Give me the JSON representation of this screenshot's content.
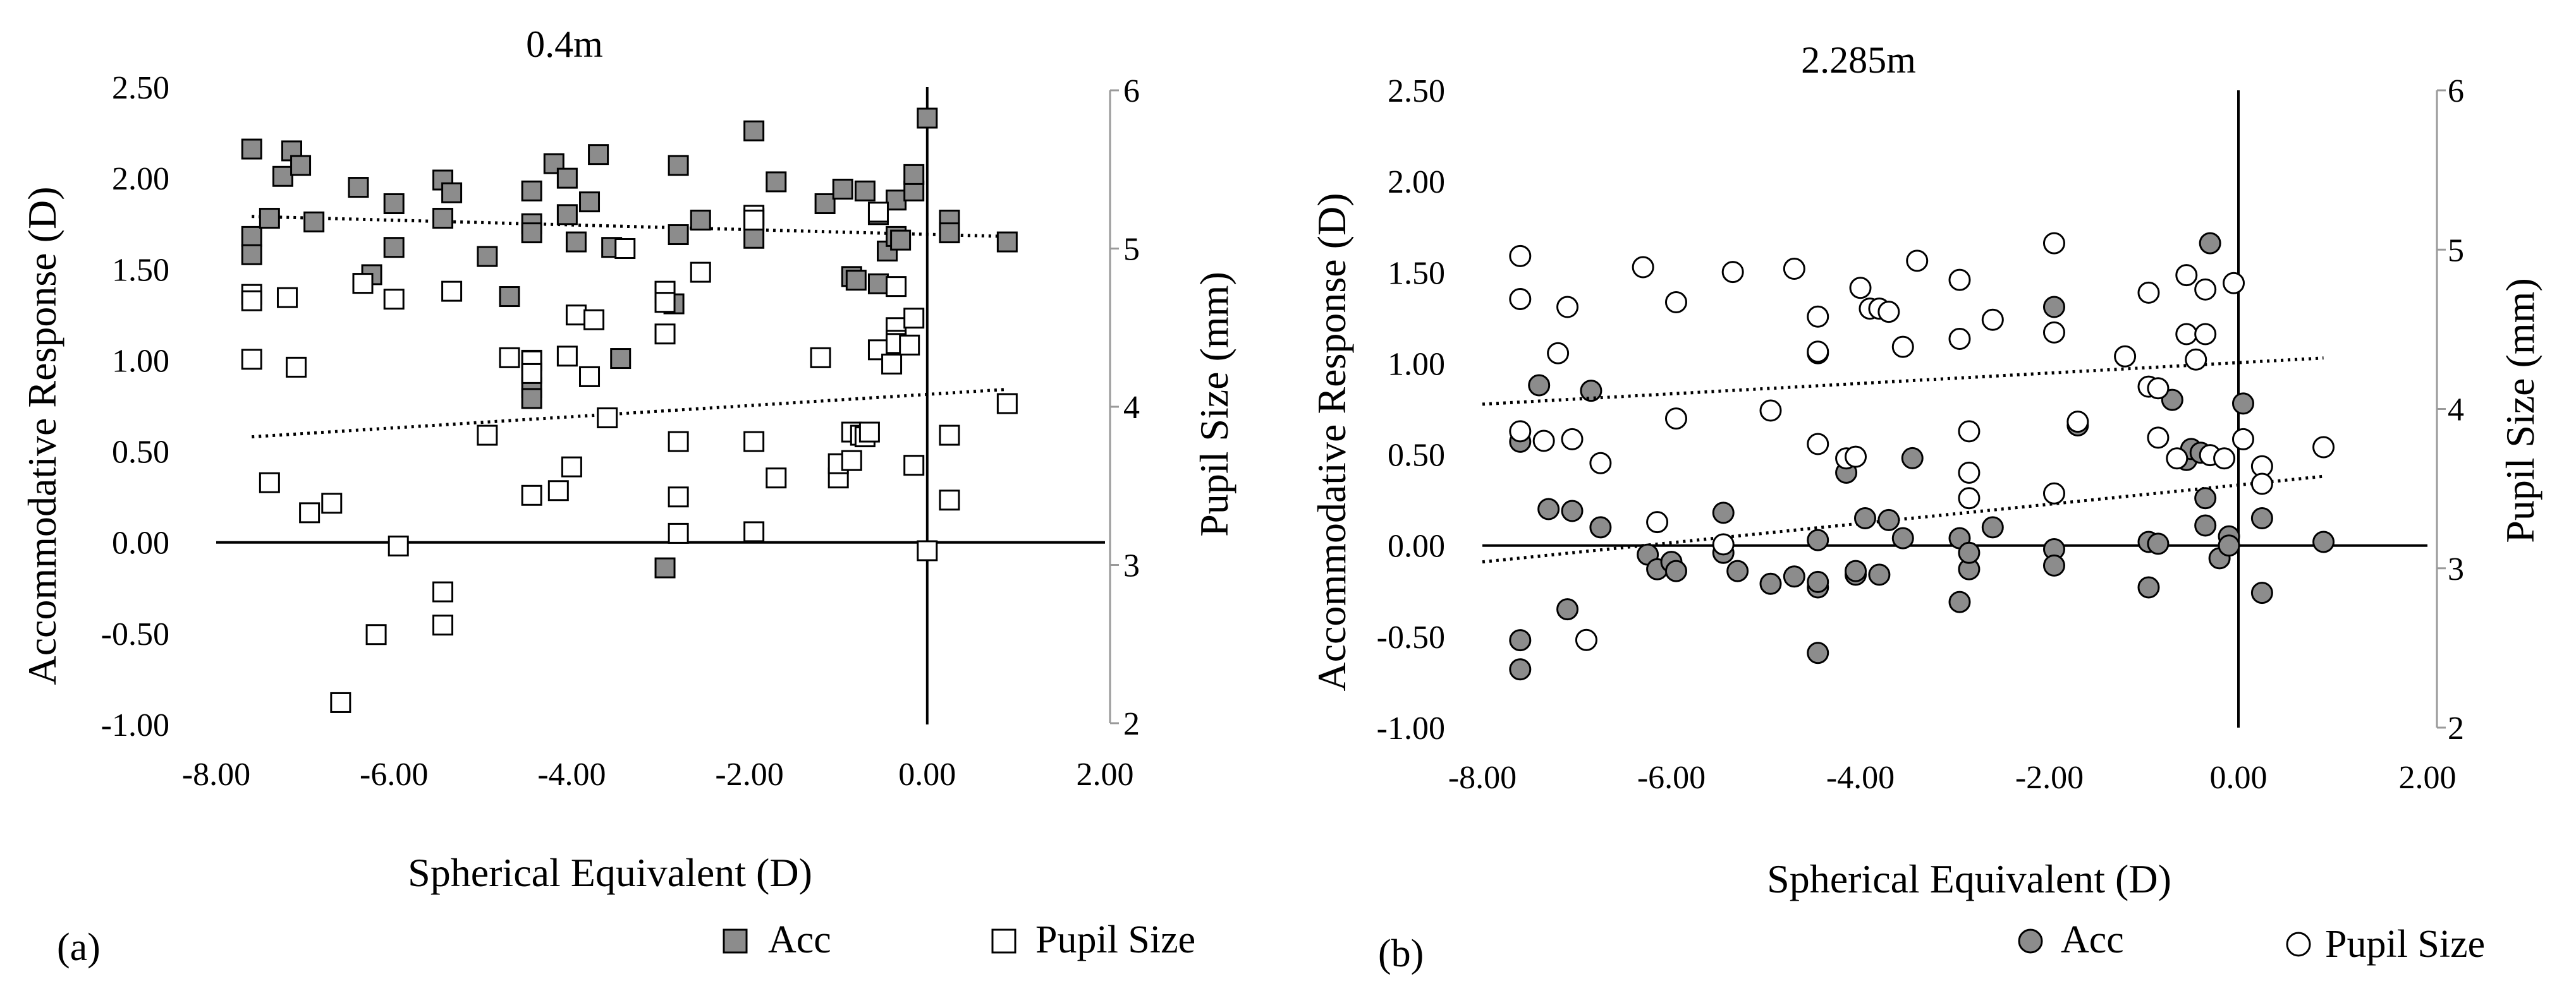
{
  "chart_data": [
    {
      "type": "scatter",
      "panel_label": "(a)",
      "title": "0.4m",
      "xlabel": "Spherical Equivalent (D)",
      "ylabel": "Accommodative Response (D)",
      "y2label": "Pupil Size (mm)",
      "xlim": [
        -8,
        2
      ],
      "ylim": [
        -1,
        2.5
      ],
      "y2lim": [
        2,
        6
      ],
      "xticks": [
        -8,
        -6,
        -4,
        -2,
        0,
        2
      ],
      "xtick_labels": [
        "-8.00",
        "-6.00",
        "-4.00",
        "-2.00",
        "0.00",
        "2.00"
      ],
      "yticks": [
        -1,
        -0.5,
        0,
        0.5,
        1,
        1.5,
        2,
        2.5
      ],
      "ytick_labels": [
        "-1.00",
        "-0.50",
        "0.00",
        "0.50",
        "1.00",
        "1.50",
        "2.00",
        "2.50"
      ],
      "y2ticks": [
        2,
        3,
        4,
        5,
        6
      ],
      "y2tick_labels": [
        "2",
        "3",
        "4",
        "5",
        "6"
      ],
      "marker": "square",
      "legend": [
        "Acc",
        "Pupil Size"
      ],
      "series": [
        {
          "name": "Acc",
          "axis": "left",
          "color": "#8c8c8c",
          "points": [
            [
              -7.6,
              2.16
            ],
            [
              -7.6,
              1.68
            ],
            [
              -7.6,
              1.58
            ],
            [
              -7.4,
              1.78
            ],
            [
              -7.25,
              2.01
            ],
            [
              -7.15,
              2.15
            ],
            [
              -7.05,
              2.07
            ],
            [
              -6.9,
              1.76
            ],
            [
              -6.4,
              1.95
            ],
            [
              -6.25,
              1.47
            ],
            [
              -6.0,
              1.86
            ],
            [
              -6.0,
              1.62
            ],
            [
              -5.45,
              1.99
            ],
            [
              -5.45,
              1.78
            ],
            [
              -5.35,
              1.92
            ],
            [
              -4.95,
              1.57
            ],
            [
              -4.7,
              1.35
            ],
            [
              -4.45,
              1.93
            ],
            [
              -4.45,
              1.75
            ],
            [
              -4.45,
              1.7
            ],
            [
              -4.45,
              1.0
            ],
            [
              -4.45,
              0.93
            ],
            [
              -4.45,
              0.85
            ],
            [
              -4.45,
              0.79
            ],
            [
              -4.2,
              2.08
            ],
            [
              -4.05,
              2.0
            ],
            [
              -4.05,
              1.8
            ],
            [
              -3.95,
              1.65
            ],
            [
              -3.8,
              1.87
            ],
            [
              -3.7,
              2.13
            ],
            [
              -3.55,
              1.62
            ],
            [
              -3.45,
              1.01
            ],
            [
              -2.95,
              -0.14
            ],
            [
              -2.95,
              1.37
            ],
            [
              -2.85,
              1.31
            ],
            [
              -2.8,
              2.07
            ],
            [
              -2.8,
              1.69
            ],
            [
              -2.55,
              1.77
            ],
            [
              -1.95,
              2.26
            ],
            [
              -1.95,
              1.78
            ],
            [
              -1.95,
              1.67
            ],
            [
              -1.7,
              1.98
            ],
            [
              -1.15,
              1.86
            ],
            [
              -0.95,
              1.94
            ],
            [
              -0.85,
              1.46
            ],
            [
              -0.8,
              1.44
            ],
            [
              -0.7,
              1.93
            ],
            [
              -0.55,
              1.8
            ],
            [
              -0.55,
              1.42
            ],
            [
              -0.45,
              1.6
            ],
            [
              -0.35,
              1.88
            ],
            [
              -0.35,
              1.68
            ],
            [
              -0.3,
              1.66
            ],
            [
              -0.15,
              1.93
            ],
            [
              -0.15,
              2.02
            ],
            [
              0.0,
              2.33
            ],
            [
              0.25,
              1.77
            ],
            [
              0.25,
              1.7
            ],
            [
              0.9,
              1.65
            ]
          ],
          "trendline": [
            [
              -7.6,
              1.79
            ],
            [
              0.9,
              1.68
            ]
          ]
        },
        {
          "name": "Pupil Size",
          "axis": "right",
          "color": "#ffffff",
          "points": [
            [
              -7.6,
              4.71
            ],
            [
              -7.6,
              4.67
            ],
            [
              -7.6,
              4.3
            ],
            [
              -7.4,
              3.52
            ],
            [
              -7.2,
              4.69
            ],
            [
              -7.1,
              4.25
            ],
            [
              -6.95,
              3.33
            ],
            [
              -6.7,
              3.39
            ],
            [
              -6.6,
              2.13
            ],
            [
              -6.35,
              4.78
            ],
            [
              -6.2,
              2.56
            ],
            [
              -6.0,
              4.68
            ],
            [
              -5.95,
              3.12
            ],
            [
              -5.45,
              2.83
            ],
            [
              -5.45,
              2.62
            ],
            [
              -5.35,
              4.73
            ],
            [
              -4.95,
              3.82
            ],
            [
              -4.7,
              4.31
            ],
            [
              -4.45,
              3.44
            ],
            [
              -4.45,
              4.29
            ],
            [
              -4.45,
              4.21
            ],
            [
              -4.15,
              3.47
            ],
            [
              -4.05,
              4.32
            ],
            [
              -4.0,
              3.62
            ],
            [
              -3.95,
              4.58
            ],
            [
              -3.8,
              4.19
            ],
            [
              -3.75,
              4.55
            ],
            [
              -3.6,
              3.93
            ],
            [
              -3.4,
              5.0
            ],
            [
              -2.95,
              4.73
            ],
            [
              -2.95,
              4.66
            ],
            [
              -2.95,
              4.46
            ],
            [
              -2.8,
              3.78
            ],
            [
              -2.8,
              3.43
            ],
            [
              -2.8,
              3.2
            ],
            [
              -2.55,
              4.85
            ],
            [
              -1.95,
              3.78
            ],
            [
              -1.95,
              3.21
            ],
            [
              -1.95,
              5.21
            ],
            [
              -1.95,
              5.18
            ],
            [
              -1.7,
              3.55
            ],
            [
              -1.2,
              4.31
            ],
            [
              -1.0,
              3.55
            ],
            [
              -1.0,
              3.64
            ],
            [
              -0.85,
              3.84
            ],
            [
              -0.85,
              3.66
            ],
            [
              -0.75,
              3.82
            ],
            [
              -0.7,
              3.81
            ],
            [
              -0.65,
              3.84
            ],
            [
              -0.55,
              4.36
            ],
            [
              -0.55,
              5.23
            ],
            [
              -0.4,
              4.27
            ],
            [
              -0.35,
              4.5
            ],
            [
              -0.35,
              4.42
            ],
            [
              -0.35,
              4.4
            ],
            [
              -0.35,
              4.76
            ],
            [
              -0.15,
              3.63
            ],
            [
              -0.2,
              4.39
            ],
            [
              -0.15,
              4.56
            ],
            [
              0.0,
              3.09
            ],
            [
              0.25,
              3.41
            ],
            [
              0.25,
              3.82
            ],
            [
              0.9,
              4.02
            ]
          ],
          "trendline": [
            [
              -7.6,
              3.81
            ],
            [
              0.9,
              4.11
            ]
          ]
        }
      ]
    },
    {
      "type": "scatter",
      "panel_label": "(b)",
      "title": "2.285m",
      "xlabel": "Spherical Equivalent (D)",
      "ylabel": "Accommodative Response (D)",
      "y2label": "Pupil Size (mm)",
      "xlim": [
        -8,
        2
      ],
      "ylim": [
        -1,
        2.5
      ],
      "y2lim": [
        2,
        6
      ],
      "xticks": [
        -8,
        -6,
        -4,
        -2,
        0,
        2
      ],
      "xtick_labels": [
        "-8.00",
        "-6.00",
        "-4.00",
        "-2.00",
        "0.00",
        "2.00"
      ],
      "yticks": [
        -1,
        -0.5,
        0,
        0.5,
        1,
        1.5,
        2,
        2.5
      ],
      "ytick_labels": [
        "-1.00",
        "-0.50",
        "0.00",
        "0.50",
        "1.00",
        "1.50",
        "2.00",
        "2.50"
      ],
      "y2ticks": [
        2,
        3,
        4,
        5,
        6
      ],
      "y2tick_labels": [
        "2",
        "3",
        "4",
        "5",
        "6"
      ],
      "marker": "circle",
      "legend": [
        "Acc",
        "Pupil Size"
      ],
      "series": [
        {
          "name": "Acc",
          "axis": "left",
          "color": "#8c8c8c",
          "points": [
            [
              -7.6,
              -0.68
            ],
            [
              -7.6,
              -0.52
            ],
            [
              -7.6,
              0.57
            ],
            [
              -7.4,
              0.88
            ],
            [
              -7.3,
              0.2
            ],
            [
              -7.1,
              -0.35
            ],
            [
              -7.05,
              0.19
            ],
            [
              -6.85,
              0.85
            ],
            [
              -6.75,
              0.1
            ],
            [
              -6.25,
              -0.05
            ],
            [
              -6.15,
              -0.13
            ],
            [
              -6.0,
              -0.09
            ],
            [
              -5.95,
              -0.14
            ],
            [
              -5.45,
              0.18
            ],
            [
              -5.45,
              -0.04
            ],
            [
              -5.3,
              -0.14
            ],
            [
              -4.95,
              -0.21
            ],
            [
              -4.7,
              -0.17
            ],
            [
              -4.45,
              -0.23
            ],
            [
              -4.45,
              -0.2
            ],
            [
              -4.45,
              -0.59
            ],
            [
              -4.45,
              0.03
            ],
            [
              -4.15,
              0.4
            ],
            [
              -4.05,
              -0.16
            ],
            [
              -4.05,
              -0.14
            ],
            [
              -3.95,
              0.15
            ],
            [
              -3.8,
              -0.16
            ],
            [
              -3.7,
              0.14
            ],
            [
              -3.55,
              0.04
            ],
            [
              -3.45,
              0.48
            ],
            [
              -2.95,
              -0.31
            ],
            [
              -2.95,
              0.04
            ],
            [
              -2.85,
              -0.13
            ],
            [
              -2.85,
              -0.04
            ],
            [
              -2.6,
              0.1
            ],
            [
              -1.95,
              1.31
            ],
            [
              -1.95,
              -0.02
            ],
            [
              -1.95,
              -0.11
            ],
            [
              -1.7,
              0.66
            ],
            [
              -0.95,
              -0.23
            ],
            [
              -0.95,
              0.02
            ],
            [
              -0.85,
              0.01
            ],
            [
              -0.7,
              0.8
            ],
            [
              -0.55,
              0.47
            ],
            [
              -0.5,
              0.53
            ],
            [
              -0.4,
              0.51
            ],
            [
              -0.35,
              0.11
            ],
            [
              -0.3,
              1.66
            ],
            [
              -0.35,
              0.26
            ],
            [
              -0.2,
              -0.07
            ],
            [
              -0.1,
              0.05
            ],
            [
              -0.1,
              0.0
            ],
            [
              0.05,
              0.78
            ],
            [
              0.25,
              -0.26
            ],
            [
              0.25,
              0.15
            ],
            [
              0.9,
              0.02
            ]
          ],
          "trendline": [
            [
              -8.0,
              -0.09
            ],
            [
              0.9,
              0.38
            ]
          ]
        },
        {
          "name": "Pupil Size",
          "axis": "right",
          "color": "#ffffff",
          "points": [
            [
              -7.6,
              4.96
            ],
            [
              -7.6,
              4.69
            ],
            [
              -7.6,
              3.86
            ],
            [
              -7.35,
              3.8
            ],
            [
              -7.2,
              4.35
            ],
            [
              -7.1,
              4.64
            ],
            [
              -7.05,
              3.81
            ],
            [
              -6.9,
              2.55
            ],
            [
              -6.75,
              3.66
            ],
            [
              -6.3,
              4.89
            ],
            [
              -6.15,
              3.29
            ],
            [
              -5.95,
              4.67
            ],
            [
              -5.95,
              3.94
            ],
            [
              -5.45,
              3.15
            ],
            [
              -5.35,
              4.86
            ],
            [
              -4.95,
              3.99
            ],
            [
              -4.7,
              4.88
            ],
            [
              -4.45,
              3.78
            ],
            [
              -4.45,
              4.35
            ],
            [
              -4.45,
              4.36
            ],
            [
              -4.45,
              4.58
            ],
            [
              -4.15,
              3.69
            ],
            [
              -4.05,
              3.7
            ],
            [
              -4.0,
              4.76
            ],
            [
              -3.9,
              4.63
            ],
            [
              -3.8,
              4.63
            ],
            [
              -3.7,
              4.61
            ],
            [
              -3.55,
              4.39
            ],
            [
              -3.4,
              4.93
            ],
            [
              -2.95,
              4.81
            ],
            [
              -2.95,
              4.44
            ],
            [
              -2.85,
              3.86
            ],
            [
              -2.85,
              3.6
            ],
            [
              -2.85,
              3.44
            ],
            [
              -2.6,
              4.56
            ],
            [
              -1.95,
              5.04
            ],
            [
              -1.95,
              4.48
            ],
            [
              -1.95,
              3.47
            ],
            [
              -1.7,
              3.92
            ],
            [
              -1.2,
              4.33
            ],
            [
              -0.95,
              4.73
            ],
            [
              -0.95,
              4.14
            ],
            [
              -0.85,
              4.13
            ],
            [
              -0.85,
              3.82
            ],
            [
              -0.65,
              3.69
            ],
            [
              -0.55,
              4.84
            ],
            [
              -0.55,
              4.47
            ],
            [
              -0.45,
              4.31
            ],
            [
              -0.35,
              4.75
            ],
            [
              -0.35,
              4.47
            ],
            [
              -0.3,
              3.71
            ],
            [
              -0.15,
              3.69
            ],
            [
              -0.05,
              4.79
            ],
            [
              0.05,
              3.81
            ],
            [
              0.25,
              3.64
            ],
            [
              0.25,
              3.53
            ],
            [
              0.9,
              3.76
            ]
          ],
          "trendline": [
            [
              -8.0,
              4.03
            ],
            [
              0.9,
              4.32
            ]
          ]
        }
      ]
    }
  ],
  "colors": {
    "acc_fill": "#8c8c8c",
    "pupil_fill": "#ffffff",
    "stroke": "#000000",
    "right_axis": "#9a9a9a"
  }
}
